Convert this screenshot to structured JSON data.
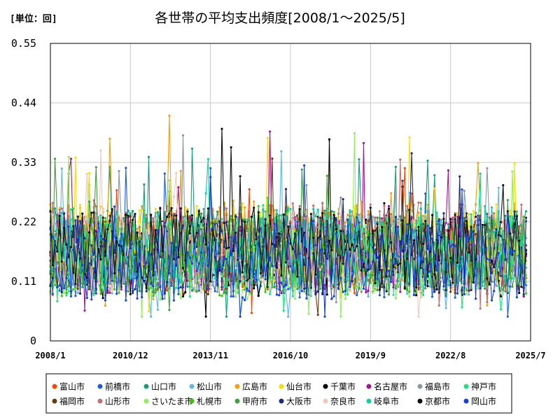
{
  "chart_data": {
    "type": "line",
    "title": "各世帯の平均支出頻度[2008/1～2025/5]",
    "unit_label": "[単位：回]",
    "xlabel": "",
    "ylabel": "",
    "ylim": [
      0,
      0.55
    ],
    "yticks": [
      "0",
      "0.11",
      "0.22",
      "0.33",
      "0.44",
      "0.55"
    ],
    "ytick_values": [
      0,
      0.11,
      0.22,
      0.33,
      0.44,
      0.55
    ],
    "xlim": [
      "2008/1",
      "2025/7"
    ],
    "xticks": [
      "2008/1",
      "2010/12",
      "2013/11",
      "2016/10",
      "2019/9",
      "2022/8",
      "2025/7"
    ],
    "grid": true,
    "legend_position": "bottom",
    "x_start": "2008/1",
    "x_end": "2025/5",
    "series": [
      {
        "name": "富山市",
        "color": "#ff4500"
      },
      {
        "name": "前橋市",
        "color": "#1e5fd8"
      },
      {
        "name": "山口市",
        "color": "#12a07a"
      },
      {
        "name": "松山市",
        "color": "#5fb8e8"
      },
      {
        "name": "広島市",
        "color": "#f0a010"
      },
      {
        "name": "仙台市",
        "color": "#f5e000"
      },
      {
        "name": "千葉市",
        "color": "#000000"
      },
      {
        "name": "名古屋市",
        "color": "#a01890"
      },
      {
        "name": "福島市",
        "color": "#8a98a0"
      },
      {
        "name": "神戸市",
        "color": "#20e080"
      },
      {
        "name": "福岡市",
        "color": "#6a3a10"
      },
      {
        "name": "山形市",
        "color": "#c07070"
      },
      {
        "name": "さいたま市",
        "color": "#90ee60"
      },
      {
        "name": "札幌市",
        "color": "#40c010"
      },
      {
        "name": "甲府市",
        "color": "#40a040"
      },
      {
        "name": "大阪市",
        "color": "#1a2a80"
      },
      {
        "name": "奈良市",
        "color": "#f0c8c0"
      },
      {
        "name": "岐阜市",
        "color": "#10d0a0"
      },
      {
        "name": "京都市",
        "color": "#101010"
      },
      {
        "name": "岡山市",
        "color": "#1840e0"
      }
    ]
  }
}
